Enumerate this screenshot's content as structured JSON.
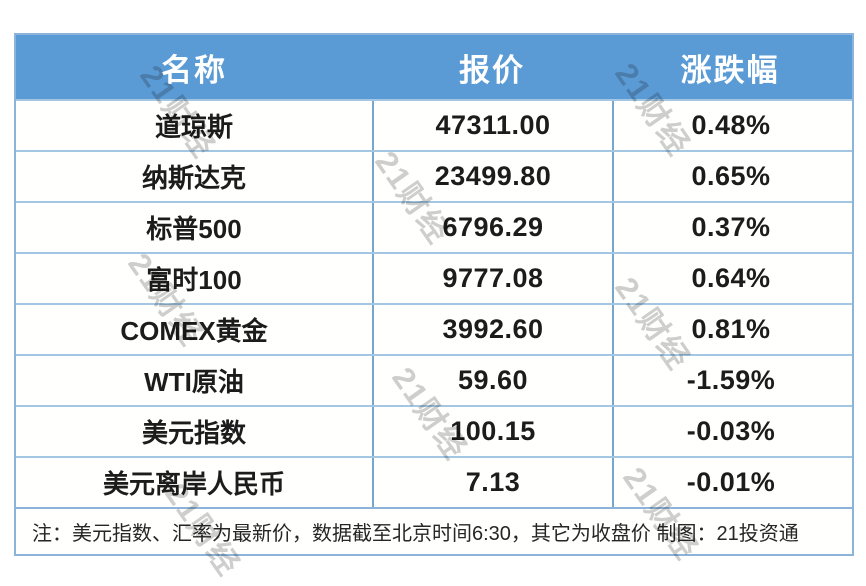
{
  "chart_data": {
    "type": "table",
    "title": "",
    "columns": [
      "名称",
      "报价",
      "涨跌幅"
    ],
    "rows": [
      {
        "name": "道琼斯",
        "quote": "47311.00",
        "change": "0.48%"
      },
      {
        "name": "纳斯达克",
        "quote": "23499.80",
        "change": "0.65%"
      },
      {
        "name": "标普500",
        "quote": "6796.29",
        "change": "0.37%"
      },
      {
        "name": "富时100",
        "quote": "9777.08",
        "change": "0.64%"
      },
      {
        "name": "COMEX黄金",
        "quote": "3992.60",
        "change": "0.81%"
      },
      {
        "name": "WTI原油",
        "quote": "59.60",
        "change": "-1.59%"
      },
      {
        "name": "美元指数",
        "quote": "100.15",
        "change": "-0.03%"
      },
      {
        "name": "美元离岸人民币",
        "quote": "7.13",
        "change": "-0.01%"
      }
    ],
    "note": "注：美元指数、汇率为最新价，数据截至北京时间6:30，其它为收盘价 制图：21投资通"
  },
  "watermark": {
    "text": "21财经"
  },
  "credit": "21投资通",
  "colors": {
    "header_bg": "#5b9bd5",
    "header_text": "#ffffff",
    "outer_border": "#8cb3d9",
    "row_border": "#a3c6e2",
    "column_border": "#76a5cd",
    "cell_text": "#1c1c1c",
    "watermark": "#adadad"
  }
}
